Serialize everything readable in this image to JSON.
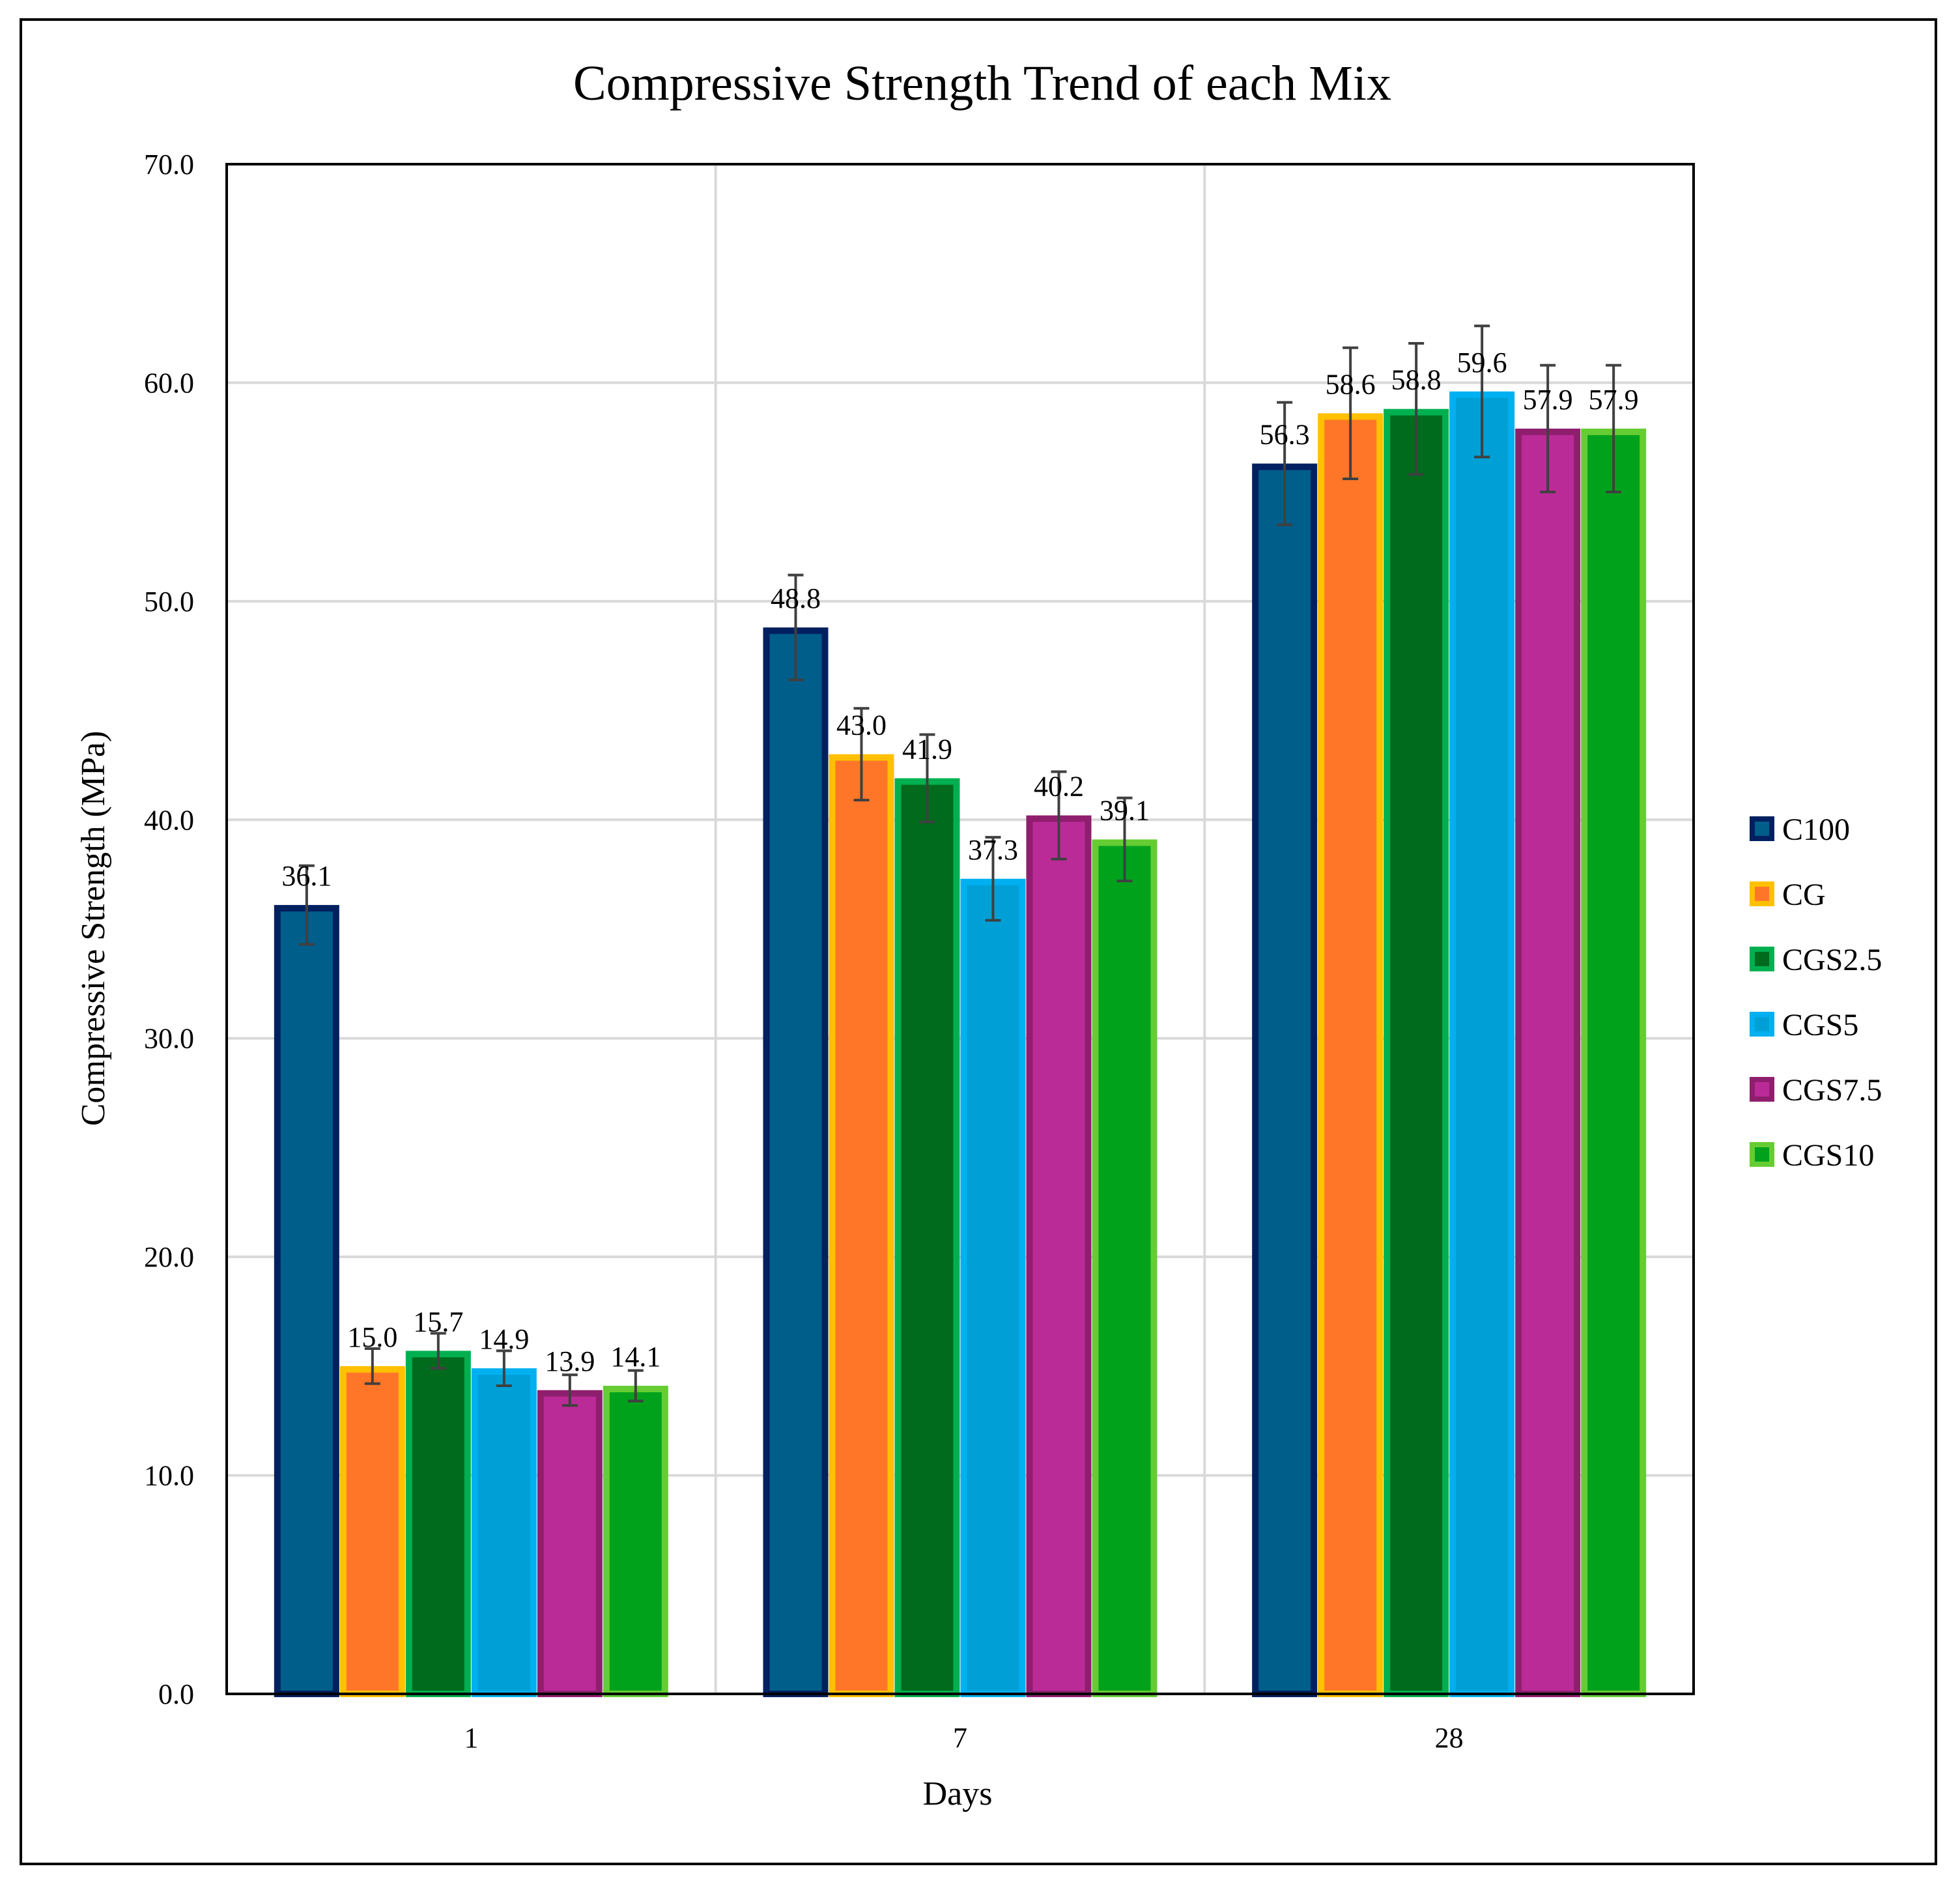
{
  "chart_data": {
    "type": "bar",
    "title": "Compressive  Strength  Trend  of  each  Mix",
    "xlabel": "Days",
    "ylabel": "Compressive Strength (MPa)",
    "ylim": [
      0,
      70
    ],
    "yticks": [
      "0.0",
      "10.0",
      "20.0",
      "30.0",
      "40.0",
      "50.0",
      "60.0",
      "70.0"
    ],
    "ytick_values": [
      0,
      10,
      20,
      30,
      40,
      50,
      60,
      70
    ],
    "grid": true,
    "legend_position": "right",
    "categories": [
      "1",
      "7",
      "28"
    ],
    "series": [
      {
        "name": "C100",
        "values": [
          36.1,
          48.8,
          56.3
        ],
        "labels": [
          "36.1",
          "48.8",
          "56.3"
        ],
        "errors": [
          1.8,
          2.4,
          2.8
        ],
        "fill": "#005E8A",
        "stroke": "#002060"
      },
      {
        "name": "CG",
        "values": [
          15.0,
          43.0,
          58.6
        ],
        "labels": [
          "15.0",
          "43.0",
          "58.6"
        ],
        "errors": [
          0.8,
          2.1,
          3.0
        ],
        "fill": "#FF7628",
        "stroke": "#FFC000"
      },
      {
        "name": "CGS2.5",
        "values": [
          15.7,
          41.9,
          58.8
        ],
        "labels": [
          "15.7",
          "41.9",
          "58.8"
        ],
        "errors": [
          0.8,
          2.0,
          3.0
        ],
        "fill": "#006B1C",
        "stroke": "#00B050"
      },
      {
        "name": "CGS5",
        "values": [
          14.9,
          37.3,
          59.6
        ],
        "labels": [
          "14.9",
          "37.3",
          "59.6"
        ],
        "errors": [
          0.8,
          1.9,
          3.0
        ],
        "fill": "#00A0D6",
        "stroke": "#00B0F0"
      },
      {
        "name": "CGS7.5",
        "values": [
          13.9,
          40.2,
          57.9
        ],
        "labels": [
          "13.9",
          "40.2",
          "57.9"
        ],
        "errors": [
          0.7,
          2.0,
          2.9
        ],
        "fill": "#BB2B98",
        "stroke": "#8F1F6E"
      },
      {
        "name": "CGS10",
        "values": [
          14.1,
          39.1,
          57.9
        ],
        "labels": [
          "14.1",
          "39.1",
          "57.9"
        ],
        "errors": [
          0.7,
          1.9,
          2.9
        ],
        "fill": "#00A21C",
        "stroke": "#66CC33"
      }
    ]
  }
}
